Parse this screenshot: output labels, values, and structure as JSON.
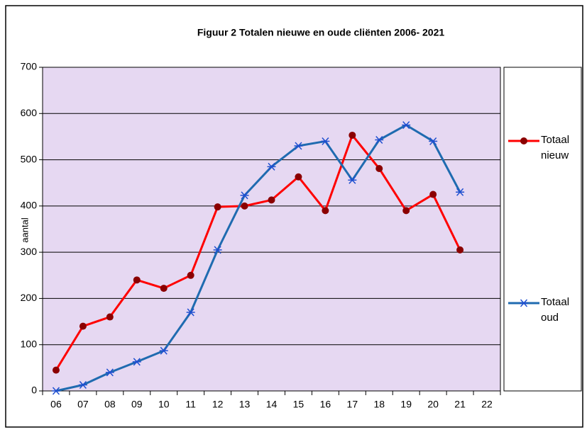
{
  "chart_data": {
    "type": "line",
    "title": "Figuur 2  Totalen nieuwe en oude cliënten 2006- 2021",
    "y_label": "aantal",
    "categories": [
      "06",
      "07",
      "08",
      "09",
      "10",
      "11",
      "12",
      "13",
      "14",
      "15",
      "16",
      "17",
      "18",
      "19",
      "20",
      "21",
      "22"
    ],
    "series": [
      {
        "name": "Totaal nieuw",
        "color": "#ff0000",
        "marker": "circle",
        "marker_color": "#8b0000",
        "values": [
          45,
          140,
          160,
          240,
          222,
          250,
          398,
          400,
          413,
          463,
          390,
          553,
          481,
          390,
          425,
          305,
          null
        ]
      },
      {
        "name": "Totaal oud",
        "color": "#1f6bb0",
        "marker": "star",
        "marker_color": "#1f4fd0",
        "values": [
          0,
          13,
          40,
          63,
          87,
          170,
          305,
          423,
          485,
          530,
          540,
          456,
          543,
          575,
          540,
          430,
          null
        ]
      }
    ],
    "ylim": [
      0,
      700
    ],
    "yticks": [
      0,
      100,
      200,
      300,
      400,
      500,
      600,
      700
    ],
    "grid": true,
    "plot_background": "#e6d8f2",
    "legend": "right"
  }
}
